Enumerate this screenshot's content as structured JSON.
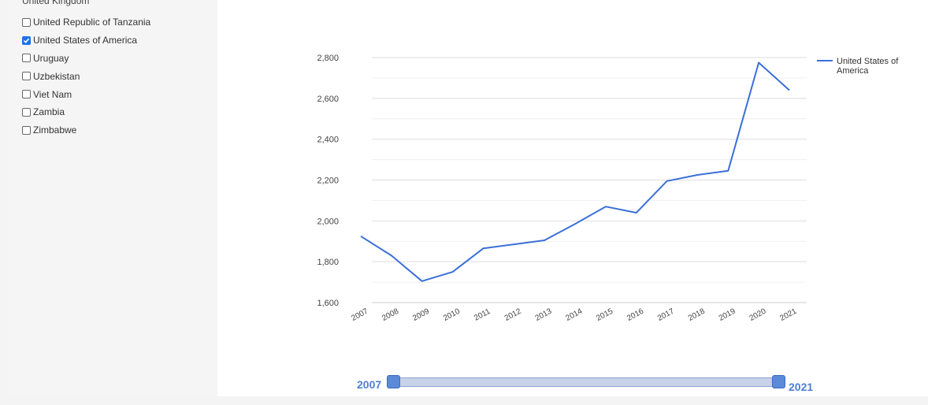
{
  "sidebar": {
    "cut_item_label": "United Kingdom",
    "countries": [
      {
        "label": "United Republic of Tanzania",
        "checked": false
      },
      {
        "label": "United States of America",
        "checked": true
      },
      {
        "label": "Uruguay",
        "checked": false
      },
      {
        "label": "Uzbekistan",
        "checked": false
      },
      {
        "label": "Viet Nam",
        "checked": false
      },
      {
        "label": "Zambia",
        "checked": false
      },
      {
        "label": "Zimbabwe",
        "checked": false
      }
    ]
  },
  "chart_data": {
    "type": "line",
    "title": "",
    "xlabel": "",
    "ylabel": "",
    "x": [
      "2007",
      "2008",
      "2009",
      "2010",
      "2011",
      "2012",
      "2013",
      "2014",
      "2015",
      "2016",
      "2017",
      "2018",
      "2019",
      "2020",
      "2021"
    ],
    "series": [
      {
        "name": "United States of America",
        "color": "#3b6fd8",
        "values": [
          1925,
          1830,
          1705,
          1750,
          1865,
          1885,
          1905,
          1985,
          2070,
          2040,
          2195,
          2225,
          2245,
          2775,
          2640
        ]
      }
    ],
    "ylim": [
      1600,
      2800
    ],
    "yticks": [
      1600,
      1800,
      2000,
      2200,
      2400,
      2600,
      2800
    ],
    "ytick_labels": [
      "1,600",
      "1,800",
      "2,000",
      "2,200",
      "2,400",
      "2,600",
      "2,800"
    ],
    "grid": true,
    "legend_position": "right"
  },
  "range_slider": {
    "min_label": "2007",
    "max_label": "2021",
    "selected_start": "2007",
    "selected_end": "2021"
  }
}
